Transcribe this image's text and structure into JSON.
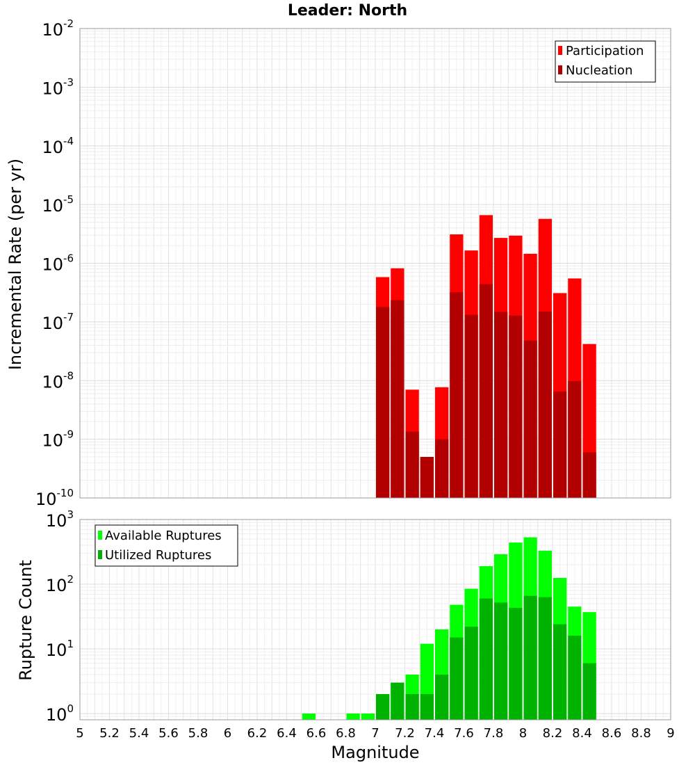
{
  "chart_data": [
    {
      "type": "bar",
      "title": "Leader: North",
      "ylabel": "Incremental Rate (per yr)",
      "xlabel": "",
      "yscale": "log",
      "ylim": [
        1e-10,
        0.01
      ],
      "ytick_base": "10",
      "ytick_exponents": [
        "-10",
        "-9",
        "-8",
        "-7",
        "-6",
        "-5",
        "-4",
        "-3",
        "-2"
      ],
      "grid": true,
      "legend_position": "top-right",
      "stacking": "overlaid",
      "x": [
        7.05,
        7.15,
        7.25,
        7.35,
        7.45,
        7.55,
        7.65,
        7.75,
        7.85,
        7.95,
        8.05,
        8.15,
        8.25,
        8.35,
        8.45
      ],
      "series": [
        {
          "name": "Participation",
          "color": "#ff0000",
          "values": [
            5.8e-07,
            8.2e-07,
            7e-09,
            5e-10,
            7.7e-09,
            3.1e-06,
            1.65e-06,
            6.6e-06,
            2.7e-06,
            2.95e-06,
            1.45e-06,
            5.7e-06,
            3.1e-07,
            5.5e-07,
            4.2e-08
          ]
        },
        {
          "name": "Nucleation",
          "color": "#b20000",
          "values": [
            1.8e-07,
            2.35e-07,
            1.35e-09,
            5e-10,
            1e-09,
            3.2e-07,
            1.32e-07,
            4.4e-07,
            1.48e-07,
            1.28e-07,
            4.8e-08,
            1.5e-07,
            6.5e-09,
            9.8e-09,
            6e-10
          ]
        }
      ]
    },
    {
      "type": "bar",
      "title": "",
      "ylabel": "Rupture Count",
      "xlabel": "Magnitude",
      "yscale": "log",
      "ylim": [
        0.8,
        1000
      ],
      "ytick_base": "10",
      "ytick_exponents": [
        "0",
        "1",
        "2",
        "3"
      ],
      "xlim": [
        5,
        9
      ],
      "xticks": [
        "5",
        "5.2",
        "5.4",
        "5.6",
        "5.8",
        "6",
        "6.2",
        "6.4",
        "6.6",
        "6.8",
        "7",
        "7.2",
        "7.4",
        "7.6",
        "7.8",
        "8",
        "8.2",
        "8.4",
        "8.6",
        "8.8",
        "9"
      ],
      "grid": true,
      "legend_position": "top-left",
      "stacking": "overlaid",
      "x": [
        6.55,
        6.85,
        6.95,
        7.05,
        7.15,
        7.25,
        7.35,
        7.45,
        7.55,
        7.65,
        7.75,
        7.85,
        7.95,
        8.05,
        8.15,
        8.25,
        8.35,
        8.45
      ],
      "series": [
        {
          "name": "Available Ruptures",
          "color": "#00ff00",
          "values": [
            1,
            1,
            1,
            2,
            3,
            4,
            12,
            20,
            48,
            85,
            190,
            290,
            440,
            530,
            330,
            125,
            45,
            37
          ]
        },
        {
          "name": "Utilized Ruptures",
          "color": "#00b200",
          "values": [
            0,
            0,
            0,
            2,
            3,
            2,
            2,
            4,
            15,
            22,
            60,
            52,
            43,
            66,
            63,
            24,
            16,
            6
          ]
        }
      ]
    }
  ]
}
